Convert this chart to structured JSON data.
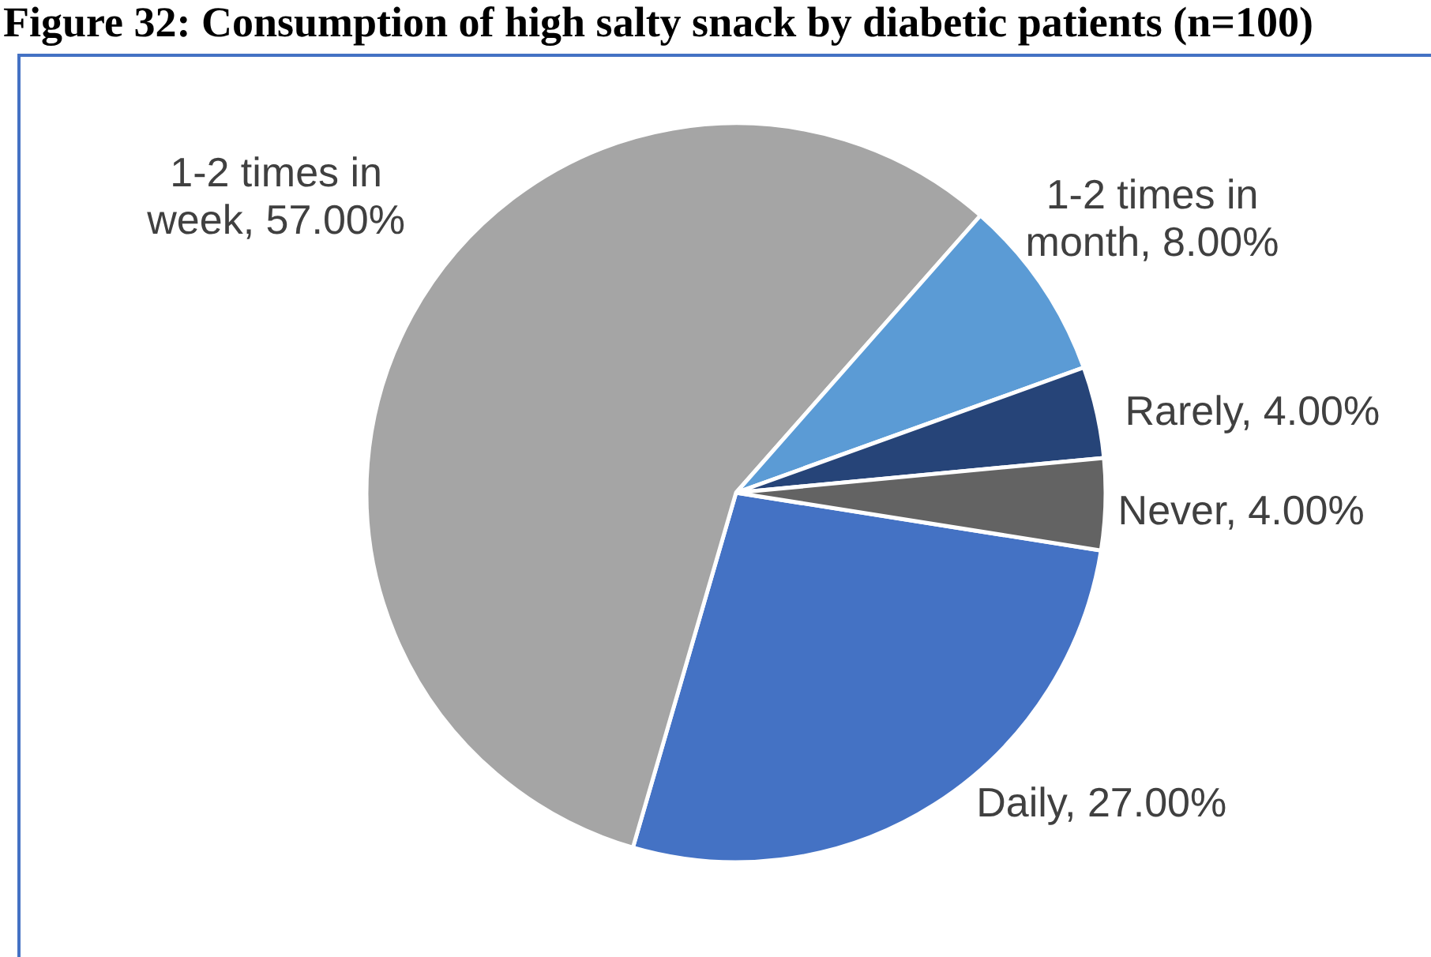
{
  "chart_data": {
    "type": "pie",
    "title": "Figure 32: Consumption of high salty snack by diabetic patients (n=100)",
    "categories": [
      "Daily",
      "1-2 times in week",
      "1-2 times in month",
      "Rarely",
      "Never"
    ],
    "values": [
      27,
      57,
      8,
      4,
      4
    ],
    "colors": [
      "#4472c4",
      "#a5a5a5",
      "#5b9bd5",
      "#264478",
      "#636363"
    ],
    "value_labels": [
      "27.00%",
      "57.00%",
      "8.00%",
      "4.00%",
      "4.00%"
    ]
  }
}
